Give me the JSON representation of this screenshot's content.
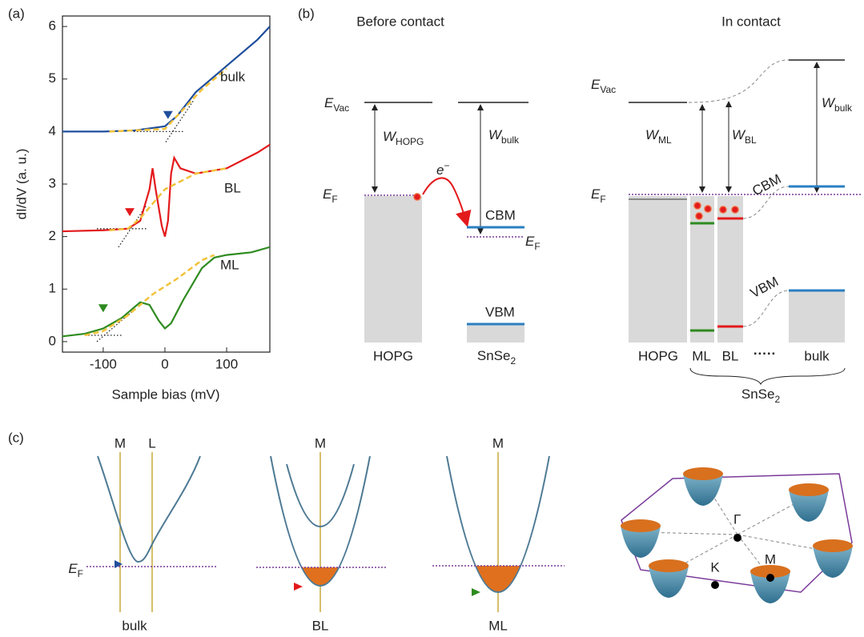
{
  "panel_labels": [
    "(a)",
    "(b)",
    "(c)"
  ],
  "chart_data": {
    "type": "line",
    "xlabel": "Sample bias (mV)",
    "ylabel": "dI/dV (a. u.)",
    "xlim": [
      -166,
      170
    ],
    "ylim": [
      -0.2,
      6.2
    ],
    "xticks": [
      -100,
      0,
      100
    ],
    "yticks": [
      0,
      1,
      2,
      3,
      4,
      5,
      6
    ],
    "series": [
      {
        "name": "bulk",
        "color": "#1f4e9c",
        "x": [
          -166,
          -100,
          -50,
          0,
          20,
          50,
          100,
          150,
          170
        ],
        "values": [
          4.0,
          4.0,
          4.02,
          4.1,
          4.3,
          4.75,
          5.25,
          5.75,
          6.0
        ]
      },
      {
        "name": "BL",
        "color": "#e31a1c",
        "x": [
          -166,
          -100,
          -60,
          -40,
          -25,
          -20,
          -15,
          -5,
          0,
          5,
          10,
          15,
          25,
          50,
          100,
          150,
          170
        ],
        "values": [
          2.1,
          2.12,
          2.15,
          2.3,
          2.9,
          3.3,
          2.9,
          2.2,
          2.0,
          2.3,
          3.2,
          3.5,
          3.3,
          3.2,
          3.3,
          3.6,
          3.75
        ]
      },
      {
        "name": "ML",
        "color": "#2e8b1f",
        "x": [
          -166,
          -130,
          -100,
          -70,
          -50,
          -40,
          -25,
          -10,
          0,
          10,
          30,
          60,
          80,
          100,
          140,
          170
        ],
        "values": [
          0.1,
          0.15,
          0.25,
          0.45,
          0.65,
          0.75,
          0.7,
          0.4,
          0.25,
          0.35,
          0.8,
          1.4,
          1.6,
          1.65,
          1.7,
          1.8
        ]
      }
    ],
    "fits": [
      {
        "color": "#f2c23a",
        "x": [
          -90,
          0,
          20,
          60,
          100
        ],
        "values": [
          4.0,
          4.05,
          4.3,
          4.8,
          5.2
        ]
      },
      {
        "color": "#f2c23a",
        "x": [
          -90,
          -60,
          -40,
          0,
          50,
          100
        ],
        "values": [
          2.12,
          2.15,
          2.35,
          2.9,
          3.2,
          3.3
        ]
      },
      {
        "color": "#f2c23a",
        "x": [
          -130,
          -100,
          -60,
          -20,
          20,
          60,
          80
        ],
        "values": [
          0.12,
          0.2,
          0.5,
          0.9,
          1.2,
          1.55,
          1.65
        ]
      }
    ],
    "onsets": [
      {
        "color": "#1f4e9c",
        "x": 5,
        "y": 4.3
      },
      {
        "color": "#e31a1c",
        "x": -57,
        "y": 2.45
      },
      {
        "color": "#2e8b1f",
        "x": -100,
        "y": 0.62
      }
    ]
  },
  "before_contact": {
    "title": "Before contact",
    "e_vac": {
      "main": "E",
      "sub": "Vac"
    },
    "w_hopg": {
      "main": "W",
      "sub": "HOPG"
    },
    "w_bulk": {
      "main": "W",
      "sub": "bulk"
    },
    "e_f_left": {
      "main": "E",
      "sub": "F"
    },
    "e_f_right": {
      "main": "E",
      "sub": "F"
    },
    "electron": {
      "main": "e",
      "sup": "−"
    },
    "cbm": "CBM",
    "vbm": "VBM",
    "hopg": "HOPG",
    "snse2": {
      "main": "SnSe",
      "sub": "2"
    }
  },
  "in_contact": {
    "title": "In contact",
    "e_vac": {
      "main": "E",
      "sub": "Vac"
    },
    "w_ml": {
      "main": "W",
      "sub": "ML"
    },
    "w_bl": {
      "main": "W",
      "sub": "BL"
    },
    "w_bulk": {
      "main": "W",
      "sub": "bulk"
    },
    "e_f": {
      "main": "E",
      "sub": "F"
    },
    "cbm": "CBM",
    "vbm": "VBM",
    "columns": [
      "HOPG",
      "ML",
      "BL",
      "·····",
      "bulk"
    ],
    "snse2": {
      "main": "SnSe",
      "sub": "2"
    }
  },
  "bands": {
    "bulk": {
      "m": "M",
      "l": "L",
      "e_f": {
        "main": "E",
        "sub": "F"
      },
      "label": "bulk"
    },
    "bl": {
      "m": "M",
      "label": "BL"
    },
    "ml": {
      "m": "M",
      "label": "ML"
    },
    "bz": {
      "gamma": "Γ",
      "m": "M",
      "k": "K"
    }
  }
}
